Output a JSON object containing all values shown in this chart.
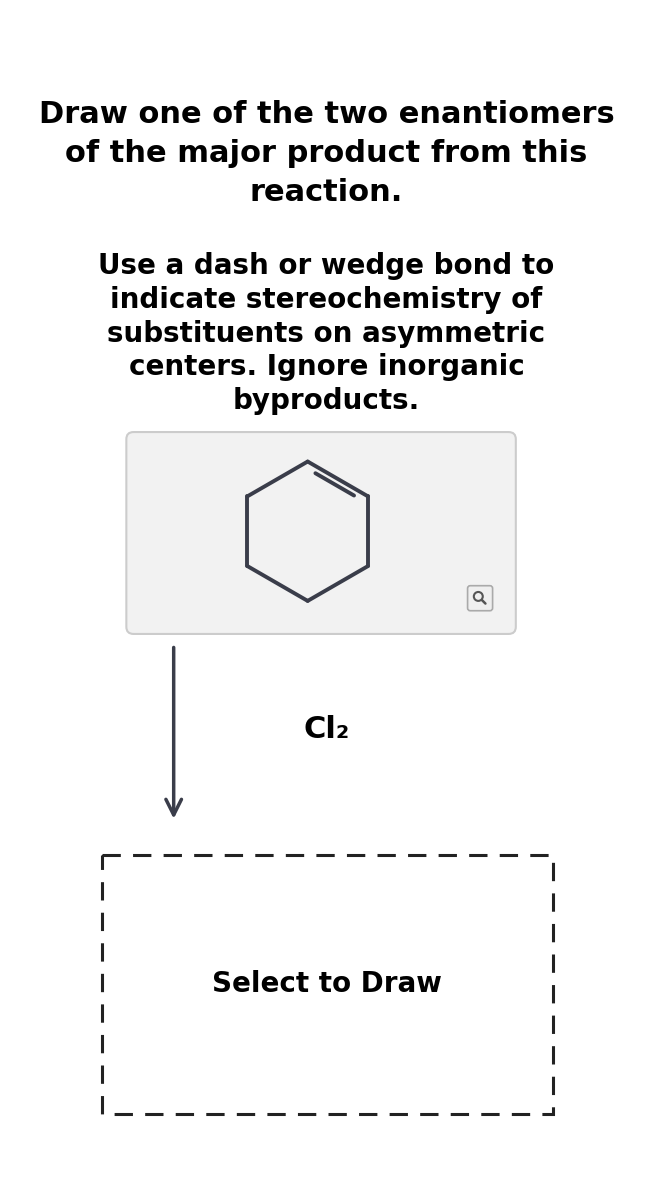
{
  "title_line1": "Draw one of the two enantiomers",
  "title_line2": "of the major product from this",
  "title_line3": "reaction.",
  "subtitle_line1": "Use a dash or wedge bond to",
  "subtitle_line2": "indicate stereochemistry of",
  "subtitle_line3": "substituents on asymmetric",
  "subtitle_line4": "centers. Ignore inorganic",
  "subtitle_line5": "byproducts.",
  "reagent_label": "Cl₂",
  "draw_label": "Select to Draw",
  "bg_color": "#ffffff",
  "text_color": "#000000",
  "ring_color": "#3a3d4a",
  "arrow_color": "#3a3d4a",
  "box_bg": "#f2f2f2",
  "box_border": "#cccccc",
  "dashed_box_color": "#222222",
  "title_fontsize": 22,
  "subtitle_fontsize": 20,
  "reagent_fontsize": 22,
  "draw_fontsize": 20
}
